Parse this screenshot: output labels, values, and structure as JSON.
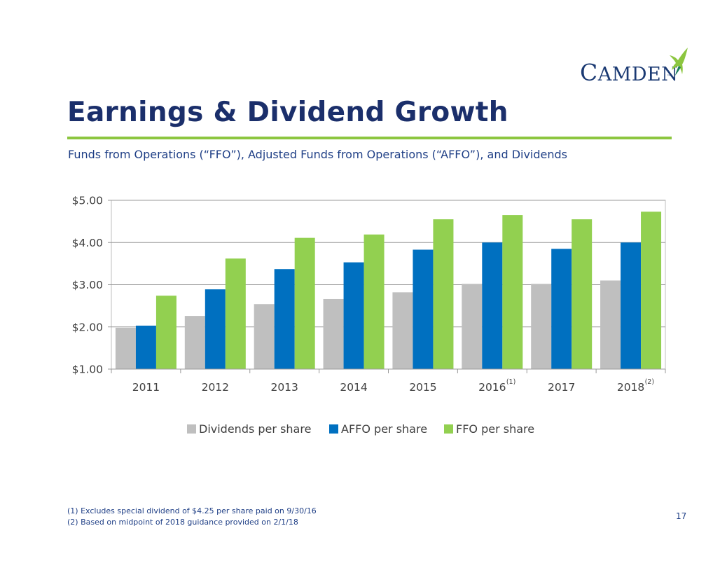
{
  "brand": {
    "name_cap": "C",
    "name_rest": "AMDEN",
    "tm": "™",
    "colors": {
      "navy": "#1b2f6b",
      "green": "#8cc63f",
      "blue": "#1f3f86"
    },
    "icon": "hummingbird-icon"
  },
  "slide": {
    "title": "Earnings & Dividend Growth",
    "subtitle": "Funds from Operations (“FFO”), Adjusted Funds from Operations (“AFFO”), and Dividends",
    "footnotes": [
      "(1) Excludes special dividend of $4.25 per share paid on 9/30/16",
      "(2) Based on midpoint of 2018 guidance provided on 2/1/18"
    ],
    "page_number": "17"
  },
  "chart_data": {
    "type": "bar",
    "categories": [
      "2011",
      "2012",
      "2013",
      "2014",
      "2015",
      "2016",
      "2017",
      "2018"
    ],
    "category_notes": [
      "",
      "",
      "",
      "",
      "",
      "(1)",
      "",
      "(2)"
    ],
    "series": [
      {
        "name": "Dividends per share",
        "color": "#bfbfbf",
        "values": [
          1.98,
          2.26,
          2.54,
          2.66,
          2.82,
          3.02,
          3.02,
          3.1
        ]
      },
      {
        "name": "AFFO per share",
        "color": "#0070c0",
        "values": [
          2.03,
          2.89,
          3.37,
          3.53,
          3.83,
          4.0,
          3.85,
          4.0
        ]
      },
      {
        "name": "FFO per share",
        "color": "#92d050",
        "values": [
          2.74,
          3.62,
          4.11,
          4.19,
          4.55,
          4.65,
          4.55,
          4.73
        ]
      }
    ],
    "y_ticks": [
      "$1.00",
      "$2.00",
      "$3.00",
      "$4.00",
      "$5.00"
    ],
    "ylim": [
      1,
      5
    ],
    "grid": true,
    "legend_position": "bottom",
    "title": "",
    "xlabel": "",
    "ylabel": ""
  }
}
